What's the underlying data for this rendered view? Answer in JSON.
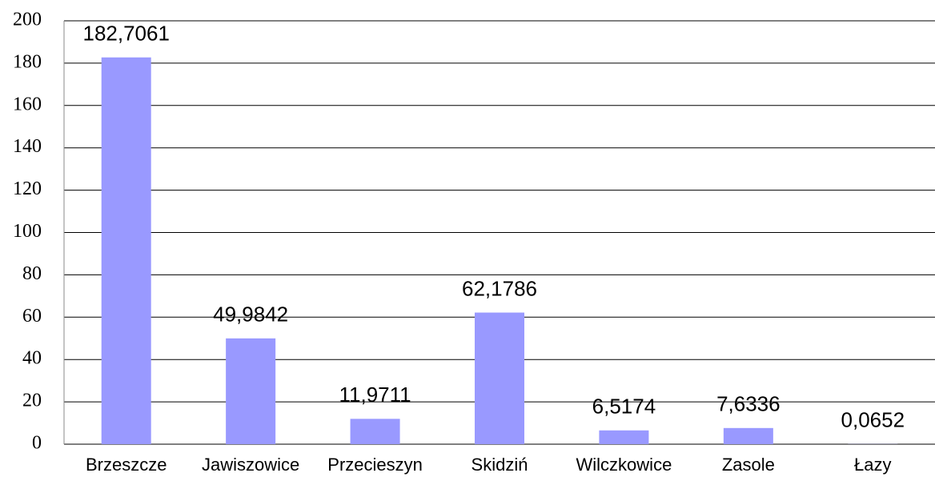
{
  "chart_data": {
    "type": "bar",
    "categories": [
      "Brzeszcze",
      "Jawiszowice",
      "Przecieszyn",
      "Skidziń",
      "Wilczkowice",
      "Zasole",
      "Łazy"
    ],
    "values": [
      182.7061,
      49.9842,
      11.9711,
      62.1786,
      6.5174,
      7.6336,
      0.0652
    ],
    "value_labels": [
      "182,7061",
      "49,9842",
      "11,9711",
      "62,1786",
      "6,5174",
      "7,6336",
      "0,0652"
    ],
    "color": "#9999ff",
    "ylim": [
      0,
      200
    ],
    "yticks": [
      0,
      20,
      40,
      60,
      80,
      100,
      120,
      140,
      160,
      180,
      200
    ],
    "grid": true
  }
}
